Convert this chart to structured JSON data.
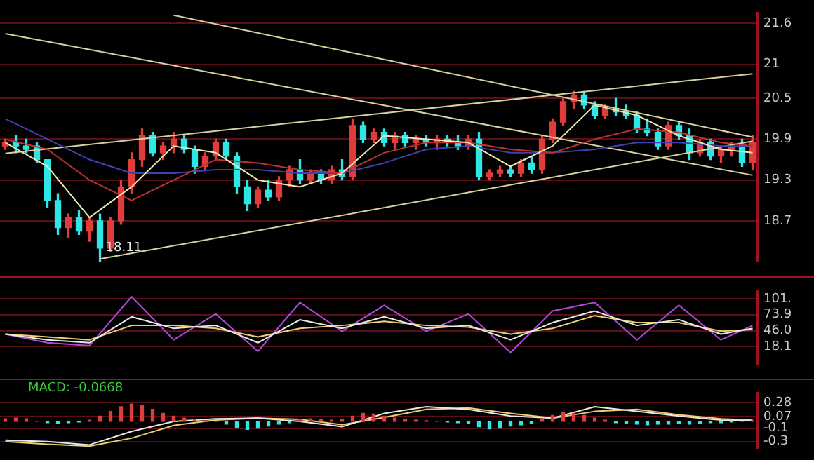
{
  "chart_data": [
    {
      "type": "candlestick",
      "categories": [
        null,
        null,
        null,
        null,
        null,
        null,
        null,
        null,
        null,
        null,
        null,
        null,
        null,
        null,
        null,
        null,
        null,
        null,
        null,
        null,
        null,
        null,
        null,
        null,
        null,
        null,
        null,
        null,
        null,
        null,
        null,
        null,
        null,
        null,
        null,
        null,
        null,
        null,
        null,
        null,
        null,
        null,
        null,
        null,
        null,
        null,
        null,
        null,
        null,
        null,
        null,
        null,
        null,
        null,
        null,
        null,
        null,
        null,
        null,
        null,
        null,
        null,
        null,
        null,
        null,
        null,
        null,
        null,
        null,
        null,
        null,
        null
      ],
      "ohlc": [
        [
          19.8,
          19.9,
          19.75,
          19.85
        ],
        [
          19.85,
          19.95,
          19.7,
          19.8
        ],
        [
          19.8,
          19.9,
          19.7,
          19.75
        ],
        [
          19.8,
          19.85,
          19.55,
          19.6
        ],
        [
          19.6,
          19.6,
          18.9,
          19.0
        ],
        [
          19.0,
          19.1,
          18.5,
          18.6
        ],
        [
          18.6,
          18.8,
          18.45,
          18.75
        ],
        [
          18.75,
          18.85,
          18.5,
          18.55
        ],
        [
          18.55,
          18.75,
          18.4,
          18.7
        ],
        [
          18.7,
          18.8,
          18.11,
          18.3
        ],
        [
          18.3,
          18.75,
          18.25,
          18.7
        ],
        [
          18.7,
          19.3,
          18.65,
          19.2
        ],
        [
          19.2,
          19.7,
          19.1,
          19.6
        ],
        [
          19.6,
          20.05,
          19.5,
          19.95
        ],
        [
          19.95,
          20.0,
          19.65,
          19.7
        ],
        [
          19.7,
          19.85,
          19.6,
          19.8
        ],
        [
          19.8,
          20.0,
          19.7,
          19.9
        ],
        [
          19.9,
          19.95,
          19.7,
          19.75
        ],
        [
          19.75,
          19.8,
          19.4,
          19.5
        ],
        [
          19.5,
          19.7,
          19.45,
          19.65
        ],
        [
          19.65,
          19.9,
          19.6,
          19.85
        ],
        [
          19.85,
          19.9,
          19.6,
          19.65
        ],
        [
          19.65,
          19.7,
          19.1,
          19.2
        ],
        [
          19.2,
          19.3,
          18.85,
          18.95
        ],
        [
          18.95,
          19.2,
          18.9,
          19.15
        ],
        [
          19.15,
          19.3,
          19.0,
          19.05
        ],
        [
          19.05,
          19.35,
          19.0,
          19.3
        ],
        [
          19.3,
          19.5,
          19.2,
          19.45
        ],
        [
          19.45,
          19.6,
          19.25,
          19.3
        ],
        [
          19.3,
          19.45,
          19.25,
          19.4
        ],
        [
          19.4,
          19.45,
          19.25,
          19.3
        ],
        [
          19.3,
          19.5,
          19.25,
          19.45
        ],
        [
          19.45,
          19.6,
          19.3,
          19.35
        ],
        [
          19.35,
          20.2,
          19.3,
          20.1
        ],
        [
          20.1,
          20.15,
          19.85,
          19.9
        ],
        [
          19.9,
          20.05,
          19.85,
          20.0
        ],
        [
          20.0,
          20.05,
          19.8,
          19.85
        ],
        [
          19.85,
          20.0,
          19.75,
          19.95
        ],
        [
          19.95,
          20.0,
          19.8,
          19.85
        ],
        [
          19.85,
          19.95,
          19.75,
          19.9
        ],
        [
          19.9,
          19.95,
          19.8,
          19.85
        ],
        [
          19.85,
          19.95,
          19.75,
          19.9
        ],
        [
          19.9,
          19.95,
          19.8,
          19.85
        ],
        [
          19.85,
          19.95,
          19.75,
          19.8
        ],
        [
          19.8,
          19.95,
          19.75,
          19.9
        ],
        [
          19.9,
          20.0,
          19.3,
          19.35
        ],
        [
          19.35,
          19.45,
          19.3,
          19.4
        ],
        [
          19.4,
          19.5,
          19.35,
          19.45
        ],
        [
          19.45,
          19.5,
          19.35,
          19.4
        ],
        [
          19.4,
          19.6,
          19.35,
          19.55
        ],
        [
          19.55,
          19.65,
          19.4,
          19.45
        ],
        [
          19.45,
          19.95,
          19.4,
          19.9
        ],
        [
          19.9,
          20.2,
          19.85,
          20.15
        ],
        [
          20.15,
          20.5,
          20.1,
          20.45
        ],
        [
          20.45,
          20.6,
          20.35,
          20.55
        ],
        [
          20.55,
          20.6,
          20.35,
          20.4
        ],
        [
          20.4,
          20.45,
          20.2,
          20.25
        ],
        [
          20.25,
          20.4,
          20.2,
          20.35
        ],
        [
          20.35,
          20.5,
          20.25,
          20.3
        ],
        [
          20.3,
          20.4,
          20.2,
          20.25
        ],
        [
          20.25,
          20.3,
          20.0,
          20.05
        ],
        [
          20.05,
          20.2,
          19.95,
          20.0
        ],
        [
          20.0,
          20.05,
          19.75,
          19.8
        ],
        [
          19.8,
          20.15,
          19.75,
          20.1
        ],
        [
          20.1,
          20.15,
          19.9,
          19.95
        ],
        [
          19.95,
          20.05,
          19.6,
          19.7
        ],
        [
          19.7,
          19.9,
          19.65,
          19.85
        ],
        [
          19.85,
          19.9,
          19.6,
          19.65
        ],
        [
          19.65,
          19.8,
          19.55,
          19.75
        ],
        [
          19.75,
          19.85,
          19.65,
          19.8
        ],
        [
          19.8,
          19.9,
          19.5,
          19.55
        ],
        [
          19.55,
          19.95,
          19.45,
          19.85
        ]
      ],
      "colors": [
        "#e03c3c",
        "#2ee6e6",
        "#2ee6e6",
        "#2ee6e6",
        "#2ee6e6",
        "#2ee6e6",
        "#e03c3c",
        "#2ee6e6",
        "#e03c3c",
        "#2ee6e6",
        "#e03c3c",
        "#e03c3c",
        "#e03c3c",
        "#e03c3c",
        "#2ee6e6",
        "#e03c3c",
        "#e03c3c",
        "#2ee6e6",
        "#2ee6e6",
        "#e03c3c",
        "#e03c3c",
        "#2ee6e6",
        "#2ee6e6",
        "#2ee6e6",
        "#e03c3c",
        "#2ee6e6",
        "#e03c3c",
        "#e03c3c",
        "#2ee6e6",
        "#e03c3c",
        "#2ee6e6",
        "#e03c3c",
        "#2ee6e6",
        "#e03c3c",
        "#2ee6e6",
        "#e03c3c",
        "#2ee6e6",
        "#e03c3c",
        "#2ee6e6",
        "#e03c3c",
        "#2ee6e6",
        "#e03c3c",
        "#2ee6e6",
        "#2ee6e6",
        "#e03c3c",
        "#2ee6e6",
        "#e03c3c",
        "#e03c3c",
        "#2ee6e6",
        "#e03c3c",
        "#2ee6e6",
        "#e03c3c",
        "#e03c3c",
        "#e03c3c",
        "#e03c3c",
        "#2ee6e6",
        "#2ee6e6",
        "#e03c3c",
        "#2ee6e6",
        "#2ee6e6",
        "#2ee6e6",
        "#2ee6e6",
        "#2ee6e6",
        "#e03c3c",
        "#2ee6e6",
        "#2ee6e6",
        "#e03c3c",
        "#2ee6e6",
        "#e03c3c",
        "#e03c3c",
        "#2ee6e6",
        "#e03c3c"
      ],
      "series": [
        {
          "type": "line",
          "color": "#f0e6b0",
          "values": [
            19.85,
            null,
            null,
            null,
            19.5,
            null,
            null,
            null,
            18.75,
            null,
            null,
            null,
            19.2,
            null,
            null,
            null,
            19.8,
            null,
            null,
            null,
            19.7,
            null,
            null,
            null,
            19.3,
            null,
            null,
            null,
            19.2,
            null,
            null,
            null,
            19.4,
            null,
            null,
            null,
            19.95,
            null,
            null,
            null,
            19.9,
            null,
            null,
            null,
            19.85,
            null,
            null,
            null,
            19.5,
            null,
            null,
            null,
            19.8,
            null,
            null,
            null,
            20.4,
            null,
            null,
            null,
            20.25,
            null,
            null,
            null,
            19.95,
            null,
            null,
            null,
            19.75,
            null,
            null,
            19.7
          ]
        },
        {
          "type": "line",
          "color": "#c03030",
          "values": [
            19.9,
            null,
            null,
            null,
            19.75,
            null,
            null,
            null,
            19.3,
            null,
            null,
            null,
            19.0,
            null,
            null,
            null,
            19.3,
            null,
            null,
            null,
            19.6,
            null,
            null,
            null,
            19.55,
            null,
            null,
            null,
            19.45,
            null,
            null,
            null,
            19.4,
            null,
            null,
            null,
            19.7,
            null,
            null,
            null,
            19.85,
            null,
            null,
            null,
            19.85,
            null,
            null,
            null,
            19.75,
            null,
            null,
            null,
            19.7,
            null,
            null,
            null,
            19.9,
            null,
            null,
            null,
            20.05,
            null,
            null,
            null,
            20.0,
            null,
            null,
            null,
            19.85,
            null,
            null,
            19.8
          ]
        },
        {
          "type": "line",
          "color": "#4040b0",
          "values": [
            20.2,
            null,
            null,
            null,
            19.9,
            null,
            null,
            null,
            19.6,
            null,
            null,
            null,
            19.4,
            null,
            null,
            null,
            19.4,
            null,
            null,
            null,
            19.45,
            null,
            null,
            null,
            19.45,
            null,
            null,
            null,
            19.4,
            null,
            null,
            null,
            19.4,
            null,
            null,
            null,
            19.55,
            null,
            null,
            null,
            19.75,
            null,
            null,
            null,
            19.8,
            null,
            null,
            null,
            19.7,
            null,
            null,
            null,
            19.7,
            null,
            null,
            null,
            19.75,
            null,
            null,
            null,
            19.85,
            null,
            null,
            null,
            19.85,
            null,
            null,
            null,
            19.8,
            null,
            null,
            19.8
          ]
        },
        {
          "type": "line",
          "color": "#d8d0a0",
          "values": [
            null,
            null,
            null,
            null,
            null,
            null,
            null,
            null,
            null,
            null,
            null,
            null,
            null,
            null,
            null,
            null,
            21.72,
            null,
            null,
            null,
            null,
            null,
            null,
            null,
            null,
            null,
            null,
            null,
            null,
            null,
            null,
            null,
            null,
            null,
            null,
            null,
            null,
            null,
            null,
            null,
            null,
            null,
            null,
            null,
            null,
            null,
            null,
            null,
            null,
            null,
            null,
            null,
            null,
            null,
            null,
            null,
            null,
            null,
            null,
            null,
            null,
            null,
            null,
            null,
            null,
            null,
            null,
            null,
            null,
            null,
            null,
            19.93
          ]
        },
        {
          "type": "line",
          "color": "#d8d0a0",
          "values": [
            21.45,
            null,
            null,
            null,
            null,
            null,
            null,
            null,
            null,
            null,
            null,
            null,
            null,
            null,
            null,
            null,
            null,
            null,
            null,
            null,
            null,
            null,
            null,
            null,
            null,
            null,
            null,
            null,
            null,
            null,
            null,
            null,
            null,
            null,
            null,
            null,
            null,
            null,
            null,
            null,
            null,
            null,
            null,
            null,
            null,
            null,
            null,
            null,
            null,
            null,
            null,
            null,
            null,
            null,
            null,
            null,
            null,
            null,
            null,
            null,
            null,
            null,
            null,
            null,
            null,
            null,
            null,
            null,
            null,
            null,
            null,
            19.37
          ]
        },
        {
          "type": "line",
          "color": "#d8d0a0",
          "values": [
            19.69,
            null,
            null,
            null,
            null,
            null,
            null,
            null,
            null,
            null,
            null,
            null,
            null,
            null,
            null,
            null,
            null,
            null,
            null,
            null,
            null,
            null,
            null,
            null,
            null,
            null,
            null,
            null,
            null,
            null,
            null,
            null,
            null,
            null,
            null,
            null,
            null,
            null,
            null,
            null,
            null,
            null,
            null,
            null,
            null,
            null,
            null,
            null,
            null,
            null,
            null,
            null,
            null,
            null,
            null,
            null,
            null,
            null,
            null,
            null,
            null,
            null,
            null,
            null,
            null,
            null,
            null,
            null,
            null,
            null,
            null,
            20.86
          ]
        },
        {
          "type": "line",
          "color": "#d8d0a0",
          "values": [
            null,
            null,
            null,
            null,
            null,
            null,
            null,
            null,
            null,
            18.14,
            null,
            null,
            null,
            null,
            null,
            null,
            null,
            null,
            null,
            null,
            null,
            null,
            null,
            null,
            null,
            null,
            null,
            null,
            null,
            null,
            null,
            null,
            null,
            null,
            null,
            null,
            null,
            null,
            null,
            null,
            null,
            null,
            null,
            null,
            null,
            null,
            null,
            null,
            null,
            null,
            null,
            null,
            null,
            null,
            null,
            null,
            null,
            null,
            null,
            null,
            null,
            null,
            null,
            null,
            null,
            null,
            null,
            null,
            null,
            null,
            null,
            19.87
          ]
        }
      ],
      "ylim": [
        18.1,
        21.75
      ],
      "yticks": [
        18.7,
        19.3,
        19.9,
        20.5,
        21.0,
        21.6
      ],
      "grid": "y",
      "tick_labels": "y",
      "annotations": [
        {
          "text": "18.11",
          "y": 18.11
        }
      ]
    },
    {
      "type": "line",
      "categories": [
        null,
        null,
        null,
        null,
        null,
        null,
        null,
        null,
        null,
        null,
        null,
        null,
        null,
        null,
        null,
        null,
        null,
        null,
        null,
        null,
        null,
        null,
        null,
        null,
        null,
        null,
        null,
        null,
        null,
        null,
        null,
        null,
        null,
        null,
        null,
        null,
        null,
        null,
        null,
        null,
        null,
        null,
        null,
        null,
        null,
        null,
        null,
        null,
        null,
        null,
        null,
        null,
        null,
        null,
        null,
        null,
        null,
        null,
        null,
        null,
        null,
        null,
        null,
        null,
        null,
        null,
        null,
        null,
        null,
        null,
        null,
        null
      ],
      "series": [
        {
          "color": "#e8e8e8",
          "values": [
            40,
            null,
            null,
            null,
            30,
            null,
            null,
            null,
            25,
            null,
            null,
            null,
            70,
            null,
            null,
            null,
            50,
            null,
            null,
            null,
            55,
            null,
            null,
            null,
            25,
            null,
            null,
            null,
            65,
            null,
            null,
            null,
            50,
            null,
            null,
            null,
            70,
            null,
            null,
            null,
            50,
            null,
            null,
            null,
            55,
            null,
            null,
            null,
            30,
            null,
            null,
            null,
            60,
            null,
            null,
            null,
            80,
            null,
            null,
            null,
            55,
            null,
            null,
            null,
            65,
            null,
            null,
            null,
            40,
            null,
            null,
            50
          ]
        },
        {
          "color": "#e8d070",
          "values": [
            40,
            null,
            null,
            null,
            35,
            null,
            null,
            null,
            30,
            null,
            null,
            null,
            55,
            null,
            null,
            null,
            55,
            null,
            null,
            null,
            50,
            null,
            null,
            null,
            35,
            null,
            null,
            null,
            50,
            null,
            null,
            null,
            55,
            null,
            null,
            null,
            62,
            null,
            null,
            null,
            55,
            null,
            null,
            null,
            52,
            null,
            null,
            null,
            40,
            null,
            null,
            null,
            50,
            null,
            null,
            null,
            72,
            null,
            null,
            null,
            60,
            null,
            null,
            null,
            60,
            null,
            null,
            null,
            45,
            null,
            null,
            48
          ]
        },
        {
          "color": "#b04ad8",
          "values": [
            40,
            null,
            null,
            null,
            25,
            null,
            null,
            null,
            20,
            null,
            null,
            null,
            105,
            null,
            null,
            null,
            30,
            null,
            null,
            null,
            75,
            null,
            null,
            null,
            10,
            null,
            null,
            null,
            95,
            null,
            null,
            null,
            45,
            null,
            null,
            null,
            90,
            null,
            null,
            null,
            45,
            null,
            null,
            null,
            75,
            null,
            null,
            null,
            8,
            null,
            null,
            null,
            80,
            null,
            null,
            null,
            95,
            null,
            null,
            null,
            30,
            null,
            null,
            null,
            90,
            null,
            null,
            null,
            30,
            null,
            null,
            55
          ]
        }
      ],
      "ylim": [
        -12,
        115
      ],
      "yticks": [
        {
          "value": 101,
          "label": "101."
        },
        73.9,
        {
          "value": 46,
          "label": "46.0"
        },
        18.1
      ],
      "grid": "y",
      "tick_labels": "y"
    },
    {
      "type": "bar",
      "categories": [
        null,
        null,
        null,
        null,
        null,
        null,
        null,
        null,
        null,
        null,
        null,
        null,
        null,
        null,
        null,
        null,
        null,
        null,
        null,
        null,
        null,
        null,
        null,
        null,
        null,
        null,
        null,
        null,
        null,
        null,
        null,
        null,
        null,
        null,
        null,
        null,
        null,
        null,
        null,
        null,
        null,
        null,
        null,
        null,
        null,
        null,
        null,
        null,
        null,
        null,
        null,
        null,
        null,
        null,
        null,
        null,
        null,
        null,
        null,
        null,
        null,
        null,
        null,
        null,
        null,
        null,
        null,
        null,
        null,
        null,
        null,
        null
      ],
      "series": [
        {
          "type": "bar",
          "values": [
            0.04,
            0.05,
            0.04,
            0.0,
            -0.02,
            -0.03,
            -0.02,
            -0.01,
            0.02,
            0.08,
            0.15,
            0.22,
            0.26,
            0.24,
            0.18,
            0.12,
            0.08,
            0.05,
            0.03,
            0.01,
            0.0,
            -0.04,
            -0.09,
            -0.12,
            -0.1,
            -0.07,
            -0.04,
            -0.02,
            0.03,
            0.04,
            0.03,
            0.02,
            0.03,
            0.08,
            0.12,
            0.11,
            0.08,
            0.05,
            0.03,
            0.02,
            0.01,
            0.0,
            -0.01,
            -0.02,
            -0.03,
            -0.08,
            -0.11,
            -0.1,
            -0.07,
            -0.05,
            -0.03,
            0.03,
            0.09,
            0.13,
            0.12,
            0.09,
            0.05,
            0.02,
            -0.02,
            -0.03,
            -0.04,
            -0.05,
            -0.04,
            -0.04,
            -0.03,
            -0.04,
            -0.03,
            -0.02,
            -0.02,
            -0.01,
            0.0,
            0.01
          ],
          "colors": [
            "#e03c3c",
            "#e03c3c",
            "#e03c3c",
            "#e03c3c",
            "#2ee6e6",
            "#2ee6e6",
            "#2ee6e6",
            "#2ee6e6",
            "#e03c3c",
            "#e03c3c",
            "#e03c3c",
            "#e03c3c",
            "#e03c3c",
            "#e03c3c",
            "#e03c3c",
            "#e03c3c",
            "#e03c3c",
            "#e03c3c",
            "#e03c3c",
            "#e03c3c",
            "#e03c3c",
            "#2ee6e6",
            "#2ee6e6",
            "#2ee6e6",
            "#2ee6e6",
            "#2ee6e6",
            "#2ee6e6",
            "#2ee6e6",
            "#e03c3c",
            "#e03c3c",
            "#e03c3c",
            "#e03c3c",
            "#e03c3c",
            "#e03c3c",
            "#e03c3c",
            "#e03c3c",
            "#e03c3c",
            "#e03c3c",
            "#e03c3c",
            "#e03c3c",
            "#e03c3c",
            "#e03c3c",
            "#2ee6e6",
            "#2ee6e6",
            "#2ee6e6",
            "#2ee6e6",
            "#2ee6e6",
            "#2ee6e6",
            "#2ee6e6",
            "#2ee6e6",
            "#2ee6e6",
            "#e03c3c",
            "#e03c3c",
            "#e03c3c",
            "#e03c3c",
            "#e03c3c",
            "#e03c3c",
            "#e03c3c",
            "#2ee6e6",
            "#2ee6e6",
            "#2ee6e6",
            "#2ee6e6",
            "#2ee6e6",
            "#2ee6e6",
            "#2ee6e6",
            "#2ee6e6",
            "#2ee6e6",
            "#2ee6e6",
            "#2ee6e6",
            "#2ee6e6",
            "#e03c3c",
            "#e03c3c"
          ]
        },
        {
          "type": "line",
          "color": "#e8e8e8",
          "values": [
            -0.28,
            null,
            null,
            null,
            -0.3,
            null,
            null,
            null,
            -0.35,
            null,
            null,
            null,
            -0.15,
            null,
            null,
            null,
            0.0,
            null,
            null,
            null,
            0.04,
            null,
            null,
            null,
            0.05,
            null,
            null,
            null,
            0.0,
            null,
            null,
            null,
            -0.08,
            null,
            null,
            null,
            0.12,
            null,
            null,
            null,
            0.22,
            null,
            null,
            null,
            0.18,
            null,
            null,
            null,
            0.08,
            null,
            null,
            null,
            0.05,
            null,
            null,
            null,
            0.22,
            null,
            null,
            null,
            0.15,
            null,
            null,
            null,
            0.08,
            null,
            null,
            null,
            0.02,
            null,
            null,
            0.01
          ]
        },
        {
          "type": "line",
          "color": "#e8d070",
          "values": [
            -0.3,
            null,
            null,
            null,
            -0.34,
            null,
            null,
            null,
            -0.37,
            null,
            null,
            null,
            -0.25,
            null,
            null,
            null,
            -0.06,
            null,
            null,
            null,
            0.02,
            null,
            null,
            null,
            0.05,
            null,
            null,
            null,
            0.03,
            null,
            null,
            null,
            -0.05,
            null,
            null,
            null,
            0.06,
            null,
            null,
            null,
            0.18,
            null,
            null,
            null,
            0.2,
            null,
            null,
            null,
            0.12,
            null,
            null,
            null,
            0.05,
            null,
            null,
            null,
            0.15,
            null,
            null,
            null,
            0.18,
            null,
            null,
            null,
            0.1,
            null,
            null,
            null,
            0.04,
            null,
            null,
            0.02
          ]
        }
      ],
      "ylim": [
        -0.4,
        0.42
      ],
      "yticks": [
        0.28,
        0.07,
        -0.1,
        -0.3
      ],
      "grid": "y",
      "tick_labels": "y",
      "annotations": [
        "MACD: -0.0668"
      ]
    }
  ]
}
